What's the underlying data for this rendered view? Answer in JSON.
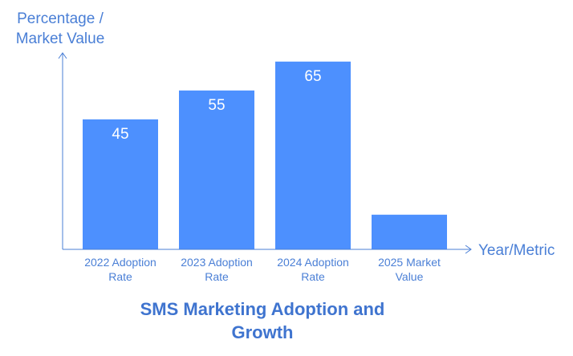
{
  "chart_data": {
    "type": "bar",
    "title": [
      "SMS Marketing Adoption and",
      "Growth"
    ],
    "xlabel": "Year/Metric",
    "ylabel": [
      "Percentage /",
      "Market Value"
    ],
    "categories": [
      [
        "2022 Adoption",
        "Rate"
      ],
      [
        "2023 Adoption",
        "Rate"
      ],
      [
        "2024 Adoption",
        "Rate"
      ],
      [
        "2025 Market",
        "Value"
      ]
    ],
    "values": [
      45,
      55,
      65,
      12
    ],
    "data_labels": [
      "45",
      "55",
      "65",
      ""
    ],
    "ylim": [
      0,
      68
    ],
    "grid": false,
    "colors": {
      "bar": "#4d90fe",
      "axis": "#4a7fd6",
      "text": "#4a7fd6",
      "title": "#3f74cf",
      "data_label": "#ffffff"
    }
  }
}
